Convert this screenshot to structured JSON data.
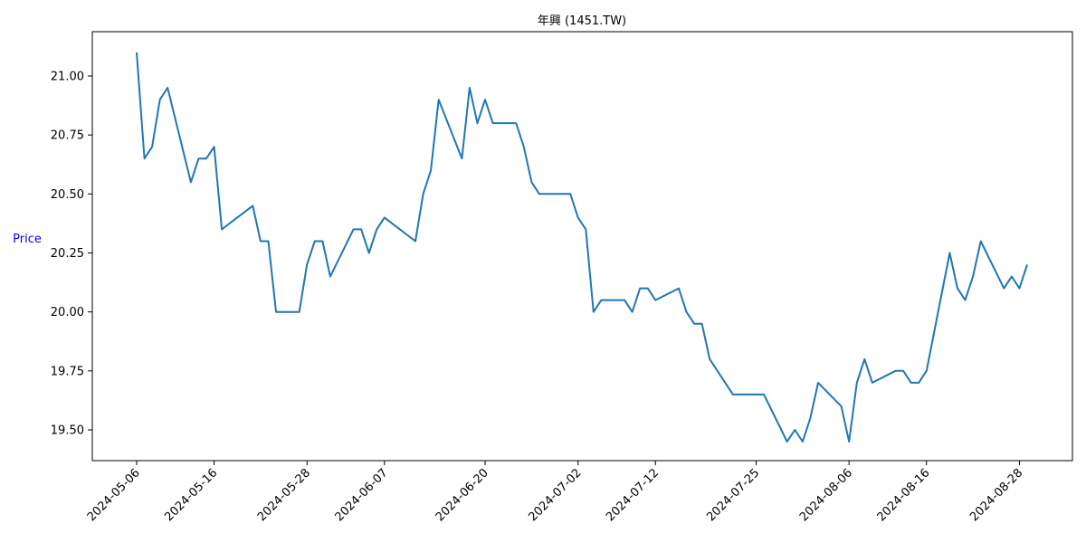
{
  "chart_data": {
    "type": "line",
    "title": "年興 (1451.TW)",
    "xlabel": "",
    "ylabel": "Price",
    "ylim": [
      19.455,
      21.1
    ],
    "xlim": [
      "2024-05-06",
      "2024-08-29"
    ],
    "grid": false,
    "series_color": "#1f77b4",
    "yticks": [
      "19.50",
      "19.75",
      "20.00",
      "20.25",
      "20.50",
      "20.75",
      "21.00"
    ],
    "xticks": [
      "2024-05-06",
      "2024-05-16",
      "2024-05-28",
      "2024-06-07",
      "2024-06-20",
      "2024-07-02",
      "2024-07-12",
      "2024-07-25",
      "2024-08-06",
      "2024-08-16",
      "2024-08-28"
    ],
    "series": [
      {
        "x": [
          "2024-05-06",
          "2024-05-07",
          "2024-05-08",
          "2024-05-09",
          "2024-05-10",
          "2024-05-13",
          "2024-05-14",
          "2024-05-15",
          "2024-05-16",
          "2024-05-17",
          "2024-05-21",
          "2024-05-22",
          "2024-05-23",
          "2024-05-24",
          "2024-05-27",
          "2024-05-28",
          "2024-05-29",
          "2024-05-30",
          "2024-05-31",
          "2024-06-03",
          "2024-06-04",
          "2024-06-05",
          "2024-06-06",
          "2024-06-07",
          "2024-06-11",
          "2024-06-12",
          "2024-06-13",
          "2024-06-14",
          "2024-06-17",
          "2024-06-18",
          "2024-06-19",
          "2024-06-20",
          "2024-06-21",
          "2024-06-24",
          "2024-06-25",
          "2024-06-26",
          "2024-06-27",
          "2024-06-28",
          "2024-07-01",
          "2024-07-02",
          "2024-07-03",
          "2024-07-04",
          "2024-07-05",
          "2024-07-08",
          "2024-07-09",
          "2024-07-10",
          "2024-07-11",
          "2024-07-12",
          "2024-07-15",
          "2024-07-16",
          "2024-07-17",
          "2024-07-18",
          "2024-07-19",
          "2024-07-22",
          "2024-07-23",
          "2024-07-26",
          "2024-07-29",
          "2024-07-30",
          "2024-07-31",
          "2024-08-01",
          "2024-08-02",
          "2024-08-05",
          "2024-08-06",
          "2024-08-07",
          "2024-08-08",
          "2024-08-09",
          "2024-08-12",
          "2024-08-13",
          "2024-08-14",
          "2024-08-15",
          "2024-08-16",
          "2024-08-19",
          "2024-08-20",
          "2024-08-21",
          "2024-08-22",
          "2024-08-23",
          "2024-08-26",
          "2024-08-27",
          "2024-08-28",
          "2024-08-29"
        ],
        "values": [
          21.1,
          20.65,
          20.7,
          20.9,
          20.95,
          20.55,
          20.65,
          20.65,
          20.7,
          20.35,
          20.45,
          20.3,
          20.3,
          20.0,
          20.0,
          20.2,
          20.3,
          20.3,
          20.15,
          20.35,
          20.35,
          20.25,
          20.35,
          20.4,
          20.3,
          20.5,
          20.6,
          20.9,
          20.65,
          20.95,
          20.8,
          20.9,
          20.8,
          20.8,
          20.7,
          20.55,
          20.5,
          20.5,
          20.5,
          20.4,
          20.35,
          20.0,
          20.05,
          20.05,
          20.0,
          20.1,
          20.1,
          20.05,
          20.1,
          20.0,
          19.95,
          19.95,
          19.8,
          19.65,
          19.65,
          19.65,
          19.45,
          19.5,
          19.45,
          19.55,
          19.7,
          19.6,
          19.45,
          19.7,
          19.8,
          19.7,
          19.75,
          19.75,
          19.7,
          19.7,
          19.75,
          20.25,
          20.1,
          20.05,
          20.15,
          20.3,
          20.1,
          20.15,
          20.1,
          20.2
        ]
      }
    ]
  }
}
